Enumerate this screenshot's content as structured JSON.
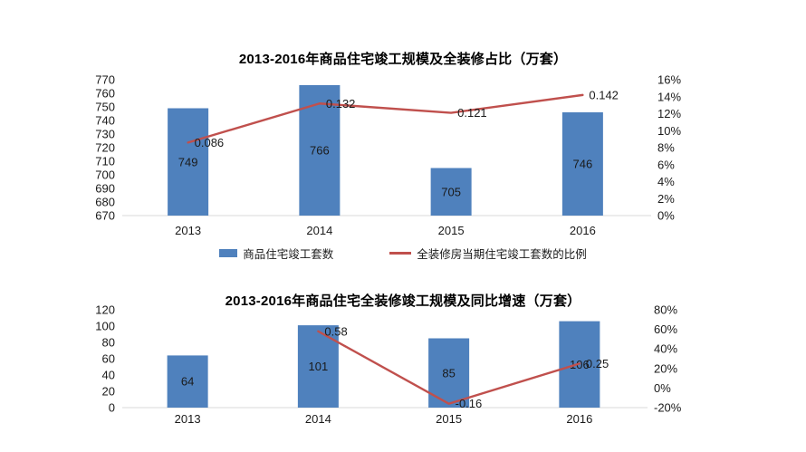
{
  "colors": {
    "bar": "#4F81BD",
    "line": "#C0504D",
    "axis_line": "#D9D9D9",
    "text": "#1a1a1a"
  },
  "chart_data": [
    {
      "type": "bar",
      "subtype": "bar+line combo, dual axis",
      "title": "2013-2016年商品住宅竣工规模及全装修占比（万套）",
      "categories": [
        "2013",
        "2014",
        "2015",
        "2016"
      ],
      "series": [
        {
          "name": "商品住宅竣工套数",
          "kind": "bar",
          "axis": "left",
          "values": [
            749,
            766,
            705,
            746
          ],
          "data_labels": [
            "749",
            "766",
            "705",
            "746"
          ]
        },
        {
          "name": "全装修房当期住宅竣工套数的比例",
          "kind": "line",
          "axis": "right",
          "values": [
            0.086,
            0.132,
            0.121,
            0.142
          ],
          "data_labels": [
            "0.086",
            "0.132",
            "0.121",
            "0.142"
          ]
        }
      ],
      "left_axis": {
        "min": 670,
        "max": 770,
        "step": 10,
        "tick_labels": [
          "770",
          "760",
          "750",
          "740",
          "730",
          "720",
          "710",
          "700",
          "690",
          "680",
          "670"
        ]
      },
      "right_axis": {
        "min": 0,
        "max": 0.16,
        "step": 0.02,
        "tick_labels": [
          "16%",
          "14%",
          "12%",
          "10%",
          "8%",
          "6%",
          "4%",
          "2%",
          "0%"
        ]
      },
      "grid": "off",
      "legend": {
        "position": "bottom",
        "items": [
          "商品住宅竣工套数",
          "全装修房当期住宅竣工套数的比例"
        ]
      }
    },
    {
      "type": "bar",
      "subtype": "bar+line combo, dual axis",
      "title": "2013-2016年商品住宅全装修竣工规模及同比增速（万套）",
      "categories": [
        "2013",
        "2014",
        "2015",
        "2016"
      ],
      "series": [
        {
          "kind": "bar",
          "axis": "left",
          "values": [
            64,
            101,
            85,
            106
          ],
          "data_labels": [
            "64",
            "101",
            "85",
            "106"
          ]
        },
        {
          "kind": "line",
          "axis": "right",
          "values": [
            null,
            0.58,
            -0.16,
            0.25
          ],
          "data_labels": [
            null,
            "0.58",
            "-0.16",
            "0.25"
          ]
        }
      ],
      "left_axis": {
        "min": 0,
        "max": 120,
        "step": 20,
        "tick_labels": [
          "120",
          "100",
          "80",
          "60",
          "40",
          "20",
          "0"
        ]
      },
      "right_axis": {
        "min": -0.2,
        "max": 0.8,
        "step": 0.2,
        "tick_labels": [
          "80%",
          "60%",
          "40%",
          "20%",
          "0%",
          "-20%"
        ]
      },
      "grid": "off",
      "legend": null
    }
  ]
}
